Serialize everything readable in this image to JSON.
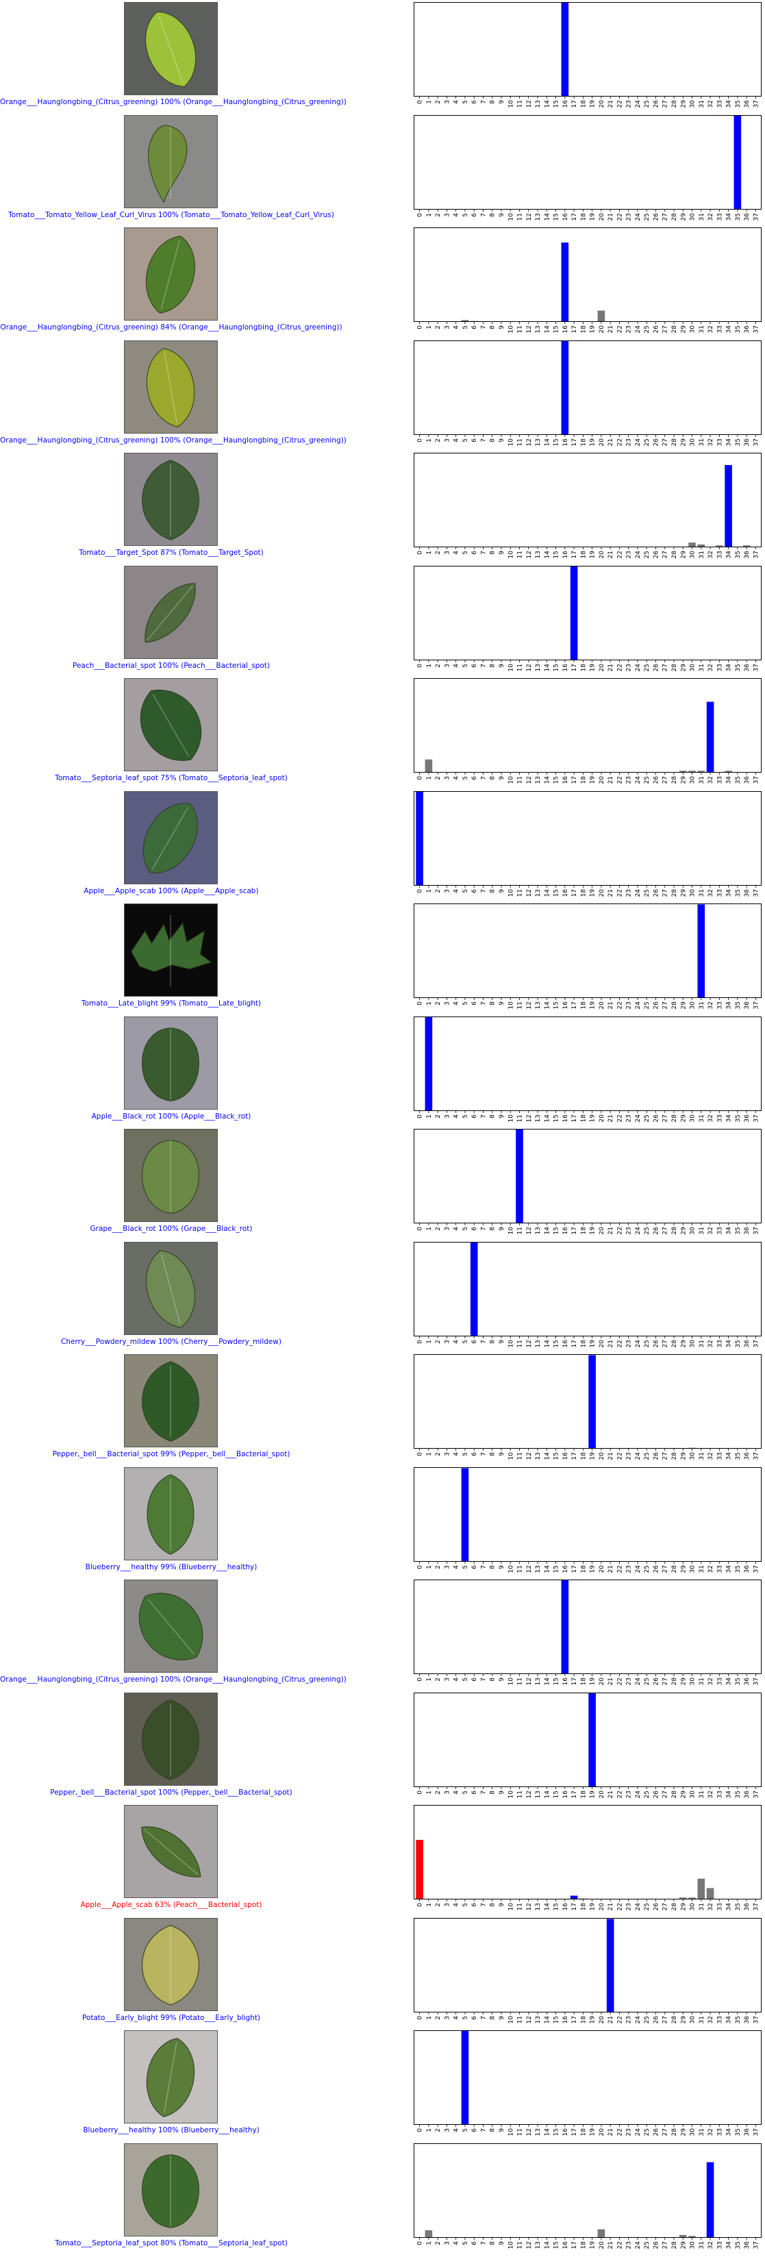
{
  "colors": {
    "correct": "#0000ff",
    "wrong": "#ff0000",
    "other": "#777777"
  },
  "chart_data": [
    {
      "type": "bar",
      "categories": [
        "0",
        "1",
        "2",
        "3",
        "4",
        "5",
        "6",
        "7",
        "8",
        "9",
        "10",
        "11",
        "12",
        "13",
        "14",
        "15",
        "16",
        "17",
        "18",
        "19",
        "20",
        "21",
        "22",
        "23",
        "24",
        "25",
        "26",
        "27",
        "28",
        "29",
        "30",
        "31",
        "32",
        "33",
        "34",
        "35",
        "36",
        "37"
      ],
      "caption": "Orange___Haunglongbing_(Citrus_greening) 100% (Orange___Haunglongbing_(Citrus_greening))",
      "correct": true,
      "predicted": 16,
      "true_label": 16,
      "values": {
        "16": 1.0
      },
      "ylim": [
        0,
        1
      ],
      "leaf": {
        "shape": "oval",
        "color": "#9cc23a",
        "bg": "#5d5f5c",
        "tilt": -20
      }
    },
    {
      "type": "bar",
      "caption": "Tomato___Tomato_Yellow_Leaf_Curl_Virus 100% (Tomato___Tomato_Yellow_Leaf_Curl_Virus)",
      "correct": true,
      "predicted": 35,
      "true_label": 35,
      "values": {
        "35": 1.0
      },
      "ylim": [
        0,
        1
      ],
      "leaf": {
        "shape": "curl",
        "color": "#6e8a3b",
        "bg": "#8a8b88",
        "tilt": 0
      }
    },
    {
      "type": "bar",
      "caption": "Orange___Haunglongbing_(Citrus_greening) 84% (Orange___Haunglongbing_(Citrus_greening))",
      "correct": true,
      "predicted": 16,
      "true_label": 16,
      "values": {
        "5": 0.02,
        "6": 0.01,
        "16": 0.84,
        "20": 0.12
      },
      "ylim": [
        0,
        1
      ],
      "leaf": {
        "shape": "oval",
        "color": "#4f7d2c",
        "bg": "#a89a8f",
        "tilt": 15
      }
    },
    {
      "type": "bar",
      "caption": "Orange___Haunglongbing_(Citrus_greening) 100% (Orange___Haunglongbing_(Citrus_greening))",
      "correct": true,
      "predicted": 16,
      "true_label": 16,
      "values": {
        "16": 1.0
      },
      "ylim": [
        0,
        1
      ],
      "leaf": {
        "shape": "oval",
        "color": "#9aa82e",
        "bg": "#8f8a80",
        "tilt": -10
      }
    },
    {
      "type": "bar",
      "caption": "Tomato___Target_Spot 87% (Tomato___Target_Spot)",
      "correct": true,
      "predicted": 34,
      "true_label": 34,
      "values": {
        "30": 0.05,
        "31": 0.03,
        "33": 0.02,
        "34": 0.87,
        "36": 0.02
      },
      "ylim": [
        0,
        1
      ],
      "leaf": {
        "shape": "wide",
        "color": "#3f5c37",
        "bg": "#8e8a90",
        "tilt": 0
      }
    },
    {
      "type": "bar",
      "caption": "Peach___Bacterial_spot 100% (Peach___Bacterial_spot)",
      "correct": true,
      "predicted": 17,
      "true_label": 17,
      "values": {
        "17": 1.0
      },
      "ylim": [
        0,
        1
      ],
      "leaf": {
        "shape": "thin",
        "color": "#4f6a3c",
        "bg": "#8c8688",
        "tilt": 40
      }
    },
    {
      "type": "bar",
      "caption": "Tomato___Septoria_leaf_spot 75% (Tomato___Septoria_leaf_spot)",
      "correct": true,
      "predicted": 32,
      "true_label": 32,
      "values": {
        "1": 0.14,
        "29": 0.02,
        "30": 0.02,
        "31": 0.02,
        "32": 0.75,
        "34": 0.02
      },
      "ylim": [
        0,
        1
      ],
      "leaf": {
        "shape": "wide",
        "color": "#2f5a2c",
        "bg": "#a59ea1",
        "tilt": -30
      }
    },
    {
      "type": "bar",
      "caption": "Apple___Apple_scab 100% (Apple___Apple_scab)",
      "correct": true,
      "predicted": 0,
      "true_label": 0,
      "values": {
        "0": 1.0
      },
      "ylim": [
        0,
        1
      ],
      "leaf": {
        "shape": "oval",
        "color": "#3d6a3a",
        "bg": "#5a5c80",
        "tilt": 30
      }
    },
    {
      "type": "bar",
      "caption": "Tomato___Late_blight 99% (Tomato___Late_blight)",
      "correct": true,
      "predicted": 31,
      "true_label": 31,
      "values": {
        "31": 0.99
      },
      "ylim": [
        0,
        1
      ],
      "leaf": {
        "shape": "jag",
        "color": "#3a6a2f",
        "bg": "#0a0a0a",
        "tilt": 0
      }
    },
    {
      "type": "bar",
      "caption": "Apple___Black_rot 100% (Apple___Black_rot)",
      "correct": true,
      "predicted": 1,
      "true_label": 1,
      "values": {
        "1": 1.0
      },
      "ylim": [
        0,
        1
      ],
      "leaf": {
        "shape": "round",
        "color": "#3a5a2f",
        "bg": "#9c9aa4",
        "tilt": 0
      }
    },
    {
      "type": "bar",
      "caption": "Grape___Black_rot 100% (Grape___Black_rot)",
      "correct": true,
      "predicted": 11,
      "true_label": 11,
      "values": {
        "11": 1.0
      },
      "ylim": [
        0,
        1
      ],
      "leaf": {
        "shape": "round",
        "color": "#6a8a46",
        "bg": "#6e7060",
        "tilt": 0
      }
    },
    {
      "type": "bar",
      "caption": "Cherry___Powdery_mildew 100% (Cherry___Powdery_mildew)",
      "correct": true,
      "predicted": 6,
      "true_label": 6,
      "values": {
        "6": 1.0
      },
      "ylim": [
        0,
        1
      ],
      "leaf": {
        "shape": "oval",
        "color": "#6f8a55",
        "bg": "#6a6c66",
        "tilt": -15
      }
    },
    {
      "type": "bar",
      "caption": "Pepper,_bell___Bacterial_spot 99% (Pepper,_bell___Bacterial_spot)",
      "correct": true,
      "predicted": 19,
      "true_label": 19,
      "values": {
        "19": 0.99,
        "30": 0.01
      },
      "ylim": [
        0,
        1
      ],
      "leaf": {
        "shape": "wide",
        "color": "#2f5a28",
        "bg": "#8a8678",
        "tilt": 0
      }
    },
    {
      "type": "bar",
      "caption": "Blueberry___healthy 99% (Blueberry___healthy)",
      "correct": true,
      "predicted": 5,
      "true_label": 5,
      "values": {
        "5": 0.99
      },
      "ylim": [
        0,
        1
      ],
      "leaf": {
        "shape": "oval",
        "color": "#4e7a36",
        "bg": "#b2b0b0",
        "tilt": 0
      }
    },
    {
      "type": "bar",
      "caption": "Orange___Haunglongbing_(Citrus_greening) 100% (Orange___Haunglongbing_(Citrus_greening))",
      "correct": true,
      "predicted": 16,
      "true_label": 16,
      "values": {
        "16": 1.0
      },
      "ylim": [
        0,
        1
      ],
      "leaf": {
        "shape": "wide",
        "color": "#3f6e33",
        "bg": "#8c8a88",
        "tilt": -40
      }
    },
    {
      "type": "bar",
      "caption": "Pepper,_bell___Bacterial_spot 100% (Pepper,_bell___Bacterial_spot)",
      "correct": true,
      "predicted": 19,
      "true_label": 19,
      "values": {
        "19": 1.0
      },
      "ylim": [
        0,
        1
      ],
      "leaf": {
        "shape": "wide",
        "color": "#3a4e2a",
        "bg": "#5f5e52",
        "tilt": 0
      }
    },
    {
      "type": "bar",
      "caption": "Apple___Apple_scab 63% (Peach___Bacterial_spot)",
      "correct": false,
      "predicted": 0,
      "true_label": 17,
      "values": {
        "0": 0.63,
        "17": 0.04,
        "18": 0.01,
        "29": 0.02,
        "30": 0.02,
        "31": 0.22,
        "32": 0.12
      },
      "ylim": [
        0,
        1
      ],
      "leaf": {
        "shape": "thin",
        "color": "#4f7232",
        "bg": "#a8a4a6",
        "tilt": -50
      }
    },
    {
      "type": "bar",
      "caption": "Potato___Early_blight 99% (Potato___Early_blight)",
      "correct": true,
      "predicted": 21,
      "true_label": 21,
      "values": {
        "21": 0.99
      },
      "ylim": [
        0,
        1
      ],
      "leaf": {
        "shape": "wide",
        "color": "#b8b460",
        "bg": "#8a8880",
        "tilt": 0
      }
    },
    {
      "type": "bar",
      "caption": "Blueberry___healthy 100% (Blueberry___healthy)",
      "correct": true,
      "predicted": 5,
      "true_label": 5,
      "values": {
        "5": 1.0
      },
      "ylim": [
        0,
        1
      ],
      "leaf": {
        "shape": "oval",
        "color": "#5a7e3a",
        "bg": "#c4c0c0",
        "tilt": 10
      }
    },
    {
      "type": "bar",
      "caption": "Tomato___Septoria_leaf_spot 80% (Tomato___Septoria_leaf_spot)",
      "correct": true,
      "predicted": 32,
      "true_label": 32,
      "values": {
        "1": 0.08,
        "20": 0.09,
        "29": 0.03,
        "30": 0.02,
        "32": 0.8
      },
      "ylim": [
        0,
        1
      ],
      "leaf": {
        "shape": "round",
        "color": "#3c6a2c",
        "bg": "#a8a49a",
        "tilt": 0
      }
    }
  ]
}
